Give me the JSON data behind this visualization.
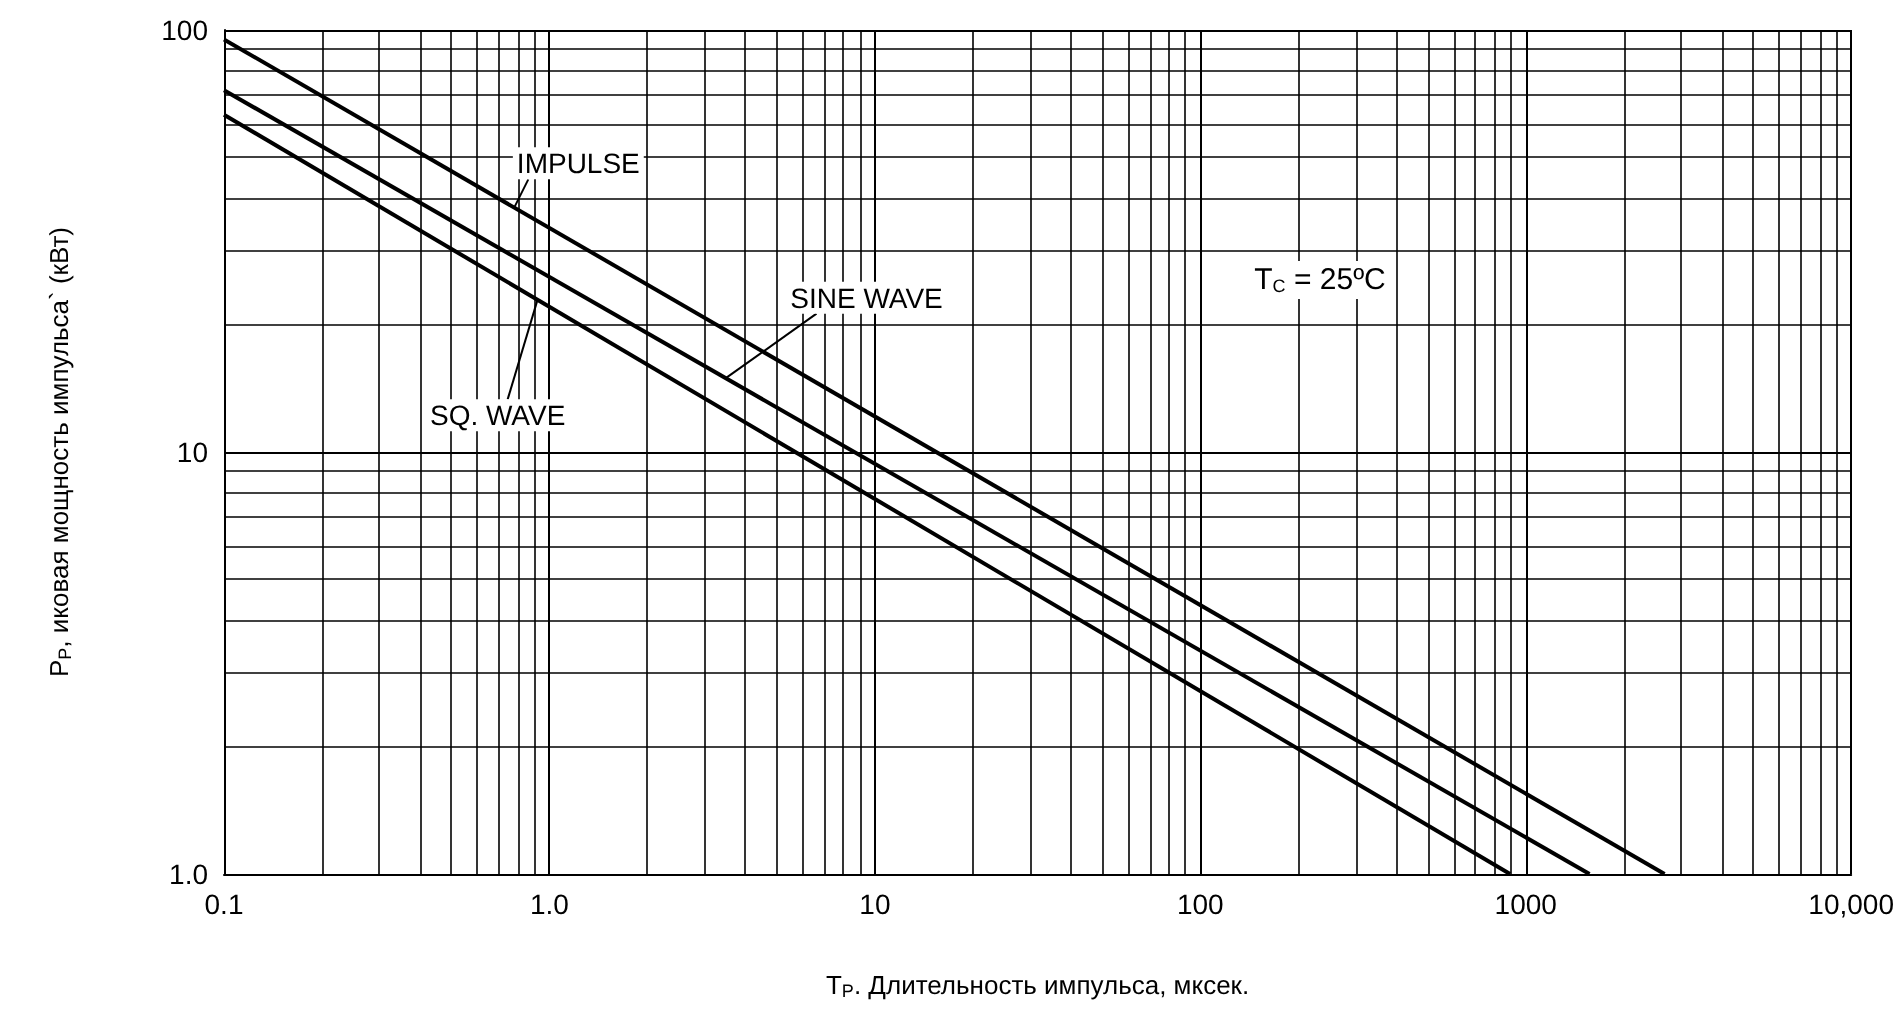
{
  "chart_data": {
    "type": "line",
    "xlabel": "T$_{P}$. Длительность импульса, мксек.",
    "ylabel": "P$_{P}$, иковая мощность импульса` (кВт)",
    "log": "xy",
    "grid": true,
    "marker": "none",
    "line_style": "solid",
    "xlim": [
      0.1,
      10000
    ],
    "xticks": [
      0.1,
      {
        "value": 1,
        "label": "1.0"
      },
      10,
      100,
      1000,
      {
        "value": 10000,
        "label": "10,000"
      }
    ],
    "ylim": [
      1,
      100
    ],
    "yticks": [
      {
        "value": 1,
        "label": "1.0"
      },
      10,
      100
    ],
    "series": [
      {
        "color": "#000000",
        "x": [
          0.1,
          2670
        ],
        "values": [
          95,
          1
        ]
      },
      {
        "color": "#000000",
        "x": [
          0.1,
          1570
        ],
        "values": [
          72,
          1
        ]
      },
      {
        "color": "#000000",
        "x": [
          0.1,
          895
        ],
        "values": [
          63,
          1
        ]
      }
    ],
    "annotations": [
      {
        "text": "IMPULSE",
        "x": 0.78,
        "y": 38
      },
      {
        "text": "SINE WAVE",
        "x": 3.5,
        "y": 15
      },
      {
        "text": "SQ. WAVE",
        "x": 0.92,
        "y": 23
      },
      "T$_{C}$ = 25ºC"
    ]
  }
}
